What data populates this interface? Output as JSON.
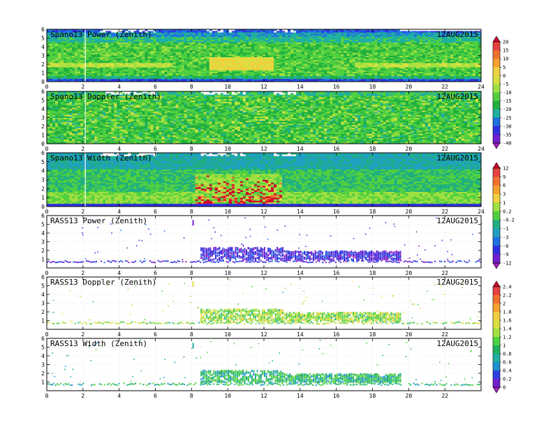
{
  "date_label": "12AUG2015",
  "chart_data": [
    {
      "type": "heatmap",
      "title": "Spano13 Power (Zenith)",
      "date": "12AUG2015",
      "xlim": [
        0,
        24
      ],
      "ylim": [
        0,
        6
      ],
      "x_ticks": [
        "0",
        "2",
        "4",
        "6",
        "8",
        "10",
        "12",
        "14",
        "16",
        "18",
        "20",
        "22",
        "24"
      ],
      "y_ticks": [
        "0",
        "1",
        "2",
        "3",
        "4",
        "5",
        "6"
      ],
      "colorbar_group": "power",
      "field": "power_field"
    },
    {
      "type": "heatmap",
      "title": "Spano13 Doppler (Zenith)",
      "date": "12AUG2015",
      "xlim": [
        0,
        24
      ],
      "ylim": [
        0,
        6
      ],
      "x_ticks": [
        "0",
        "2",
        "4",
        "6",
        "8",
        "10",
        "12",
        "14",
        "16",
        "18",
        "20",
        "22",
        "24"
      ],
      "y_ticks": [
        "0",
        "1",
        "2",
        "3",
        "4",
        "5",
        "6"
      ],
      "colorbar_group": "power",
      "field": "doppler_field"
    },
    {
      "type": "heatmap",
      "title": "Spano13 Width (Zenith)",
      "date": "12AUG2015",
      "xlim": [
        0,
        24
      ],
      "ylim": [
        0,
        6
      ],
      "x_ticks": [
        "0",
        "2",
        "4",
        "6",
        "8",
        "10",
        "12",
        "14",
        "16",
        "18",
        "20",
        "22",
        "24"
      ],
      "y_ticks": [
        "0",
        "1",
        "2",
        "3",
        "4",
        "5",
        "6"
      ],
      "colorbar_group": "width",
      "field": "width_field"
    },
    {
      "type": "scatter",
      "title": "RASS13 Power (Zenith)",
      "date": "12AUG2015",
      "xlim": [
        0,
        24
      ],
      "ylim": [
        0,
        6
      ],
      "x_ticks": [
        "0",
        "2",
        "4",
        "6",
        "8",
        "10",
        "12",
        "14",
        "16",
        "18",
        "20",
        "22"
      ],
      "y_ticks": [
        "1",
        "2",
        "3",
        "4",
        "5",
        "6"
      ],
      "colorbar_group": "width",
      "field": "rass_power"
    },
    {
      "type": "scatter",
      "title": "RASS13 Doppler (Zenith)",
      "date": "12AUG2015",
      "xlim": [
        0,
        24
      ],
      "ylim": [
        0,
        6
      ],
      "x_ticks": [
        "0",
        "2",
        "4",
        "6",
        "8",
        "10",
        "12",
        "14",
        "16",
        "18",
        "20",
        "22"
      ],
      "y_ticks": [
        "1",
        "2",
        "3",
        "4",
        "5",
        "6"
      ],
      "colorbar_group": "rass",
      "field": "rass_doppler"
    },
    {
      "type": "scatter",
      "title": "RASS13 Width (Zenith)",
      "date": "12AUG2015",
      "xlim": [
        0,
        24
      ],
      "ylim": [
        0,
        6
      ],
      "x_ticks": [
        "0",
        "2",
        "4",
        "6",
        "8",
        "10",
        "12",
        "14",
        "16",
        "18",
        "20",
        "22"
      ],
      "y_ticks": [
        "1",
        "2",
        "3",
        "4",
        "5",
        "6"
      ],
      "colorbar_group": "rass",
      "field": "rass_width"
    }
  ],
  "colorbars": {
    "power": {
      "labels": [
        "20",
        "15",
        "10",
        "5",
        "0",
        "-5",
        "-10",
        "-15",
        "-20",
        "-25",
        "-30",
        "-35",
        "-40"
      ],
      "colors": [
        "#d00030",
        "#e64040",
        "#f07030",
        "#f5a030",
        "#f0d040",
        "#d8e040",
        "#a0e040",
        "#50d040",
        "#20b040",
        "#20b0a0",
        "#2070e0",
        "#3030e0",
        "#7020d0",
        "#a020c0"
      ]
    },
    "width": {
      "labels": [
        "12",
        "9",
        "6",
        "3",
        "1",
        "0.2",
        "-0.2",
        "-1",
        "-3",
        "-6",
        "-9",
        "-12"
      ],
      "colors": [
        "#d00030",
        "#e64040",
        "#f07030",
        "#f5a030",
        "#f0d040",
        "#a0e040",
        "#50d040",
        "#20b080",
        "#20a0c0",
        "#2070e0",
        "#3030e0",
        "#7020d0",
        "#a020c0"
      ]
    },
    "rass": {
      "labels": [
        "2.4",
        "2.2",
        "2",
        "1.8",
        "1.6",
        "1.4",
        "1.2",
        "1",
        "0.8",
        "0.6",
        "0.4",
        "0.2",
        "0"
      ],
      "colors": [
        "#d00030",
        "#e64040",
        "#f07030",
        "#f5a030",
        "#f0d040",
        "#d8e040",
        "#a0e040",
        "#50d040",
        "#20b060",
        "#20b0a0",
        "#2090d0",
        "#3040e0",
        "#7020d0",
        "#a020c0"
      ]
    }
  }
}
